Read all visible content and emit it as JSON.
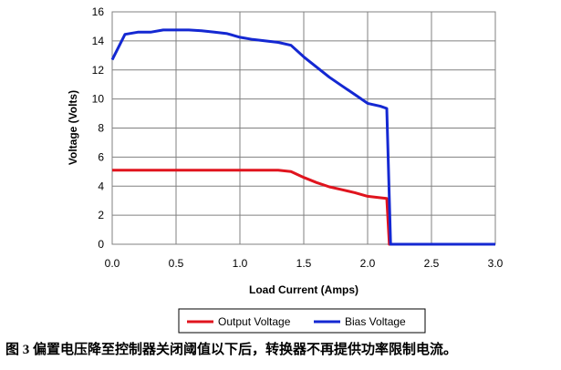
{
  "caption": "图 3 偏置电压降至控制器关闭阈值以下后，转换器不再提供功率限制电流。",
  "chart_data": {
    "type": "line",
    "title": "",
    "xlabel": "Load Current (Amps)",
    "ylabel": "Voltage (Volts)",
    "xlim": [
      0,
      3.0
    ],
    "ylim": [
      0,
      16
    ],
    "xticks": [
      0,
      0.5,
      1.0,
      1.5,
      2.0,
      2.5,
      3.0
    ],
    "xtick_labels": [
      "0.0",
      "0.5",
      "1.0",
      "1.5",
      "2.0",
      "2.5",
      "3.0"
    ],
    "yticks": [
      0,
      2,
      4,
      6,
      8,
      10,
      12,
      14,
      16
    ],
    "ytick_labels": [
      "0",
      "2",
      "4",
      "6",
      "8",
      "10",
      "12",
      "14",
      "16"
    ],
    "grid": true,
    "legend_position": "bottom",
    "series": [
      {
        "name": "Output Voltage",
        "color": "#e0141e",
        "x": [
          0,
          0.5,
          1.0,
          1.3,
          1.4,
          1.5,
          1.6,
          1.7,
          1.8,
          1.9,
          2.0,
          2.1,
          2.15,
          2.17,
          2.2,
          3.0
        ],
        "y": [
          5.1,
          5.1,
          5.1,
          5.1,
          5.0,
          4.6,
          4.25,
          3.95,
          3.75,
          3.55,
          3.3,
          3.2,
          3.15,
          0,
          0,
          0
        ]
      },
      {
        "name": "Bias Voltage",
        "color": "#1428d2",
        "x": [
          0,
          0.1,
          0.2,
          0.3,
          0.4,
          0.5,
          0.6,
          0.7,
          0.8,
          0.9,
          1.0,
          1.1,
          1.2,
          1.3,
          1.4,
          1.5,
          1.6,
          1.7,
          1.8,
          1.9,
          2.0,
          2.1,
          2.15,
          2.18,
          2.2,
          3.0
        ],
        "y": [
          12.7,
          14.45,
          14.6,
          14.6,
          14.75,
          14.75,
          14.75,
          14.7,
          14.6,
          14.5,
          14.25,
          14.1,
          14.0,
          13.9,
          13.7,
          12.9,
          12.2,
          11.5,
          10.9,
          10.3,
          9.7,
          9.5,
          9.35,
          0,
          0,
          0
        ]
      }
    ]
  }
}
